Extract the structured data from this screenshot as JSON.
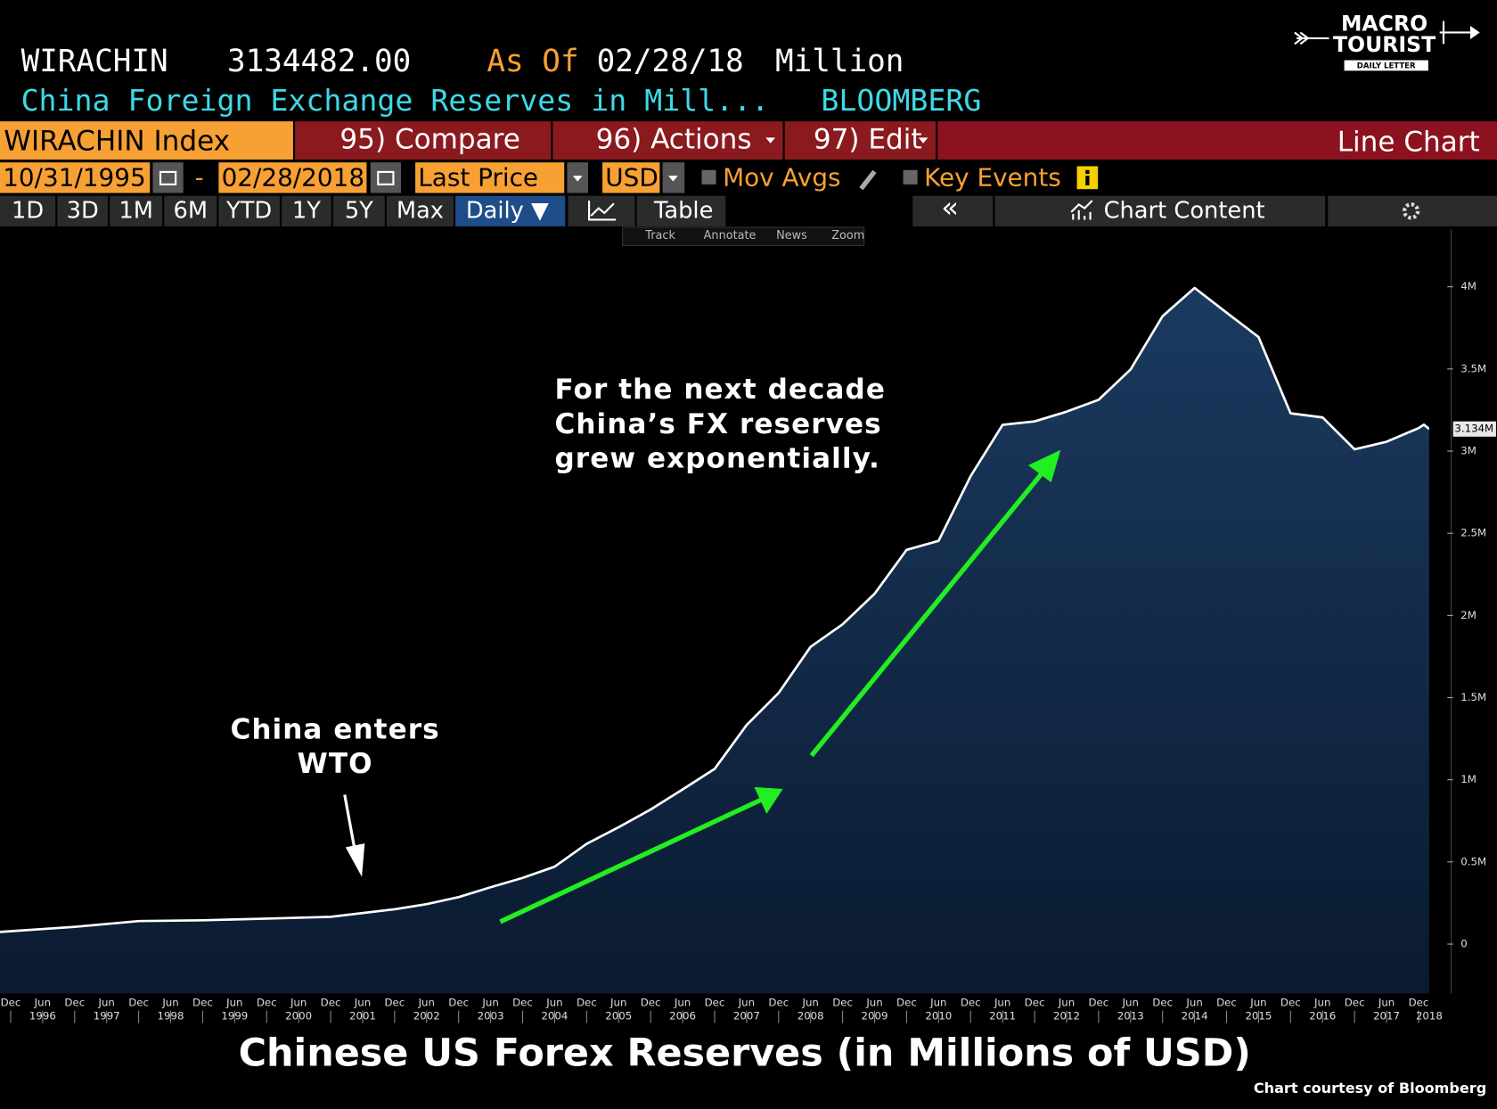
{
  "header": {
    "ticker": "WIRACHIN",
    "last_value": "3134482.00",
    "as_of_label": "As Of",
    "as_of_date": "02/28/18",
    "unit": "Million",
    "description": "China Foreign Exchange Reserves in Mill...",
    "source": "BLOOMBERG"
  },
  "toolbar": {
    "security": "WIRACHIN Index",
    "compare": "95) Compare",
    "actions": "96) Actions",
    "edit": "97) Edit",
    "chart_type": "Line Chart"
  },
  "controls": {
    "start_date": "10/31/1995",
    "separator": "-",
    "end_date": "02/28/2018",
    "field": "Last Price",
    "currency": "USD",
    "moving_averages": "Mov Avgs",
    "key_events": "Key Events"
  },
  "periods": [
    "1D",
    "3D",
    "1M",
    "6M",
    "YTD",
    "1Y",
    "5Y",
    "Max"
  ],
  "view": {
    "frequency": "Daily ▼",
    "table": "Table",
    "collapse": "«",
    "chart_content": "Chart Content"
  },
  "tools": [
    "Track",
    "Annotate",
    "News",
    "Zoom"
  ],
  "logo": {
    "line1": "MACRO",
    "line2": "TOURIST",
    "tagline": "DAILY LETTER"
  },
  "chart_data": {
    "type": "line",
    "title": "Chinese US Forex Reserves (in Millions of USD)",
    "credit": "Chart courtesy of Bloomberg",
    "color": "#ffffff",
    "fill_top": "#1b3a60",
    "fill_bottom": "#0a1a30",
    "annotations": [
      [
        "For the next decade",
        "China’s FX reserves",
        "grew exponentially."
      ],
      [
        "China enters",
        "WTO"
      ]
    ],
    "last_label": "3.134M",
    "x": [
      "1995-10",
      "1996-12",
      "1997-12",
      "1998-12",
      "1999-12",
      "2000-12",
      "2001-12",
      "2002-06",
      "2002-12",
      "2003-06",
      "2003-12",
      "2004-06",
      "2004-12",
      "2005-06",
      "2005-12",
      "2006-06",
      "2006-12",
      "2007-06",
      "2007-12",
      "2008-06",
      "2008-12",
      "2009-06",
      "2009-12",
      "2010-06",
      "2010-12",
      "2011-06",
      "2011-12",
      "2012-06",
      "2012-12",
      "2013-06",
      "2013-12",
      "2014-06",
      "2014-12",
      "2015-06",
      "2015-12",
      "2016-06",
      "2016-12",
      "2017-06",
      "2017-12",
      "2018-01",
      "2018-02"
    ],
    "values": [
      74000,
      105000,
      140000,
      145000,
      155000,
      166000,
      212000,
      243000,
      286000,
      346000,
      403000,
      471000,
      610000,
      711000,
      819000,
      941000,
      1066000,
      1333000,
      1528000,
      1809000,
      1946000,
      2132000,
      2399000,
      2454000,
      2847000,
      3160000,
      3181000,
      3240000,
      3312000,
      3497000,
      3821000,
      3993000,
      3843000,
      3694000,
      3230000,
      3205000,
      3011000,
      3057000,
      3140000,
      3161000,
      3134482
    ],
    "xlim": [
      "1995-10",
      "2018-02"
    ],
    "ylim": [
      -300000,
      4350000
    ],
    "yticks": [
      0,
      {
        "value": 500000,
        "label": "0.5M"
      },
      {
        "value": 1000000,
        "label": "1M"
      },
      {
        "value": 1500000,
        "label": "1.5M"
      },
      {
        "value": 2000000,
        "label": "2M"
      },
      {
        "value": 2500000,
        "label": "2.5M"
      },
      {
        "value": 3000000,
        "label": "3M"
      },
      {
        "value": 3500000,
        "label": "3.5M"
      },
      {
        "value": 4000000,
        "label": "4M"
      }
    ],
    "xticks": [
      {
        "value": "1995-12",
        "label": "Dec"
      },
      {
        "value": "1996-06",
        "label": "Jun"
      },
      {
        "value": "1996-12",
        "label": "Dec"
      },
      {
        "value": "1997-06",
        "label": "Jun"
      },
      {
        "value": "1997-12",
        "label": "Dec"
      },
      {
        "value": "1998-06",
        "label": "Jun"
      },
      {
        "value": "1998-12",
        "label": "Dec"
      },
      {
        "value": "1999-06",
        "label": "Jun"
      },
      {
        "value": "1999-12",
        "label": "Dec"
      },
      {
        "value": "2000-06",
        "label": "Jun"
      },
      {
        "value": "2000-12",
        "label": "Dec"
      },
      {
        "value": "2001-06",
        "label": "Jun"
      },
      {
        "value": "2001-12",
        "label": "Dec"
      },
      {
        "value": "2002-06",
        "label": "Jun"
      },
      {
        "value": "2002-12",
        "label": "Dec"
      },
      {
        "value": "2003-06",
        "label": "Jun"
      },
      {
        "value": "2003-12",
        "label": "Dec"
      },
      {
        "value": "2004-06",
        "label": "Jun"
      },
      {
        "value": "2004-12",
        "label": "Dec"
      },
      {
        "value": "2005-06",
        "label": "Jun"
      },
      {
        "value": "2005-12",
        "label": "Dec"
      },
      {
        "value": "2006-06",
        "label": "Jun"
      },
      {
        "value": "2006-12",
        "label": "Dec"
      },
      {
        "value": "2007-06",
        "label": "Jun"
      },
      {
        "value": "2007-12",
        "label": "Dec"
      },
      {
        "value": "2008-06",
        "label": "Jun"
      },
      {
        "value": "2008-12",
        "label": "Dec"
      },
      {
        "value": "2009-06",
        "label": "Jun"
      },
      {
        "value": "2009-12",
        "label": "Dec"
      },
      {
        "value": "2010-06",
        "label": "Jun"
      },
      {
        "value": "2010-12",
        "label": "Dec"
      },
      {
        "value": "2011-06",
        "label": "Jun"
      },
      {
        "value": "2011-12",
        "label": "Dec"
      },
      {
        "value": "2012-06",
        "label": "Jun"
      },
      {
        "value": "2012-12",
        "label": "Dec"
      },
      {
        "value": "2013-06",
        "label": "Jun"
      },
      {
        "value": "2013-12",
        "label": "Dec"
      },
      {
        "value": "2014-06",
        "label": "Jun"
      },
      {
        "value": "2014-12",
        "label": "Dec"
      },
      {
        "value": "2015-06",
        "label": "Jun"
      },
      {
        "value": "2015-12",
        "label": "Dec"
      },
      {
        "value": "2016-06",
        "label": "Jun"
      },
      {
        "value": "2016-12",
        "label": "Dec"
      },
      {
        "value": "2017-06",
        "label": "Jun"
      },
      {
        "value": "2017-12",
        "label": "Dec"
      }
    ],
    "year_ticks": [
      {
        "value": "1996-06",
        "label": "1996"
      },
      {
        "value": "1997-06",
        "label": "1997"
      },
      {
        "value": "1998-06",
        "label": "1998"
      },
      {
        "value": "1999-06",
        "label": "1999"
      },
      {
        "value": "2000-06",
        "label": "2000"
      },
      {
        "value": "2001-06",
        "label": "2001"
      },
      {
        "value": "2002-06",
        "label": "2002"
      },
      {
        "value": "2003-06",
        "label": "2003"
      },
      {
        "value": "2004-06",
        "label": "2004"
      },
      {
        "value": "2005-06",
        "label": "2005"
      },
      {
        "value": "2006-06",
        "label": "2006"
      },
      {
        "value": "2007-06",
        "label": "2007"
      },
      {
        "value": "2008-06",
        "label": "2008"
      },
      {
        "value": "2009-06",
        "label": "2009"
      },
      {
        "value": "2010-06",
        "label": "2010"
      },
      {
        "value": "2011-06",
        "label": "2011"
      },
      {
        "value": "2012-06",
        "label": "2012"
      },
      {
        "value": "2013-06",
        "label": "2013"
      },
      {
        "value": "2014-06",
        "label": "2014"
      },
      {
        "value": "2015-06",
        "label": "2015"
      },
      {
        "value": "2016-06",
        "label": "2016"
      },
      {
        "value": "2017-06",
        "label": "2017"
      },
      {
        "value": "2018-02",
        "label": "2018"
      }
    ],
    "grid": false
  }
}
